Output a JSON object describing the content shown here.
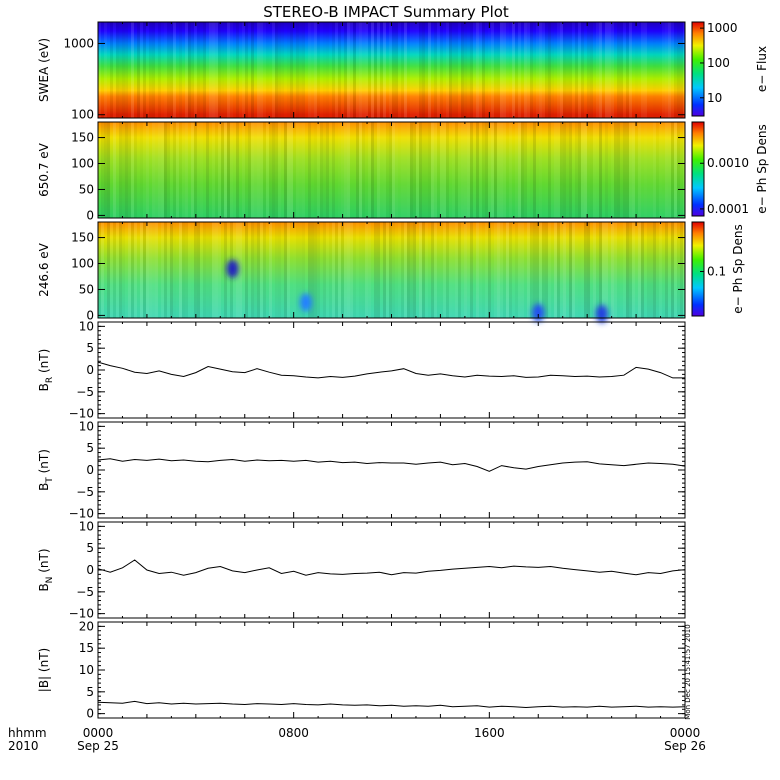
{
  "title": "STEREO-B IMPACT Summary Plot",
  "timestamp": "Mon Dec 20 15:41:57 2010",
  "x_axis": {
    "row1_label": "hhmm",
    "row2_label": "2010",
    "ticks": [
      {
        "t": 0,
        "time": "0000",
        "date": "Sep 25"
      },
      {
        "t": 8,
        "time": "0800",
        "date": ""
      },
      {
        "t": 16,
        "time": "1600",
        "date": ""
      },
      {
        "t": 24,
        "time": "0000",
        "date": "Sep 26"
      }
    ],
    "range_hours": [
      0,
      24
    ]
  },
  "chart_data": [
    {
      "type": "heatmap",
      "name": "swea",
      "ylabel": "SWEA (eV)",
      "yscale": "log",
      "ylim": [
        90,
        2000
      ],
      "yticks": [
        {
          "v": 1000,
          "label": "1000"
        },
        {
          "v": 100,
          "label": "100"
        }
      ],
      "colorbar": {
        "label": "e− Flux",
        "scale": "log",
        "range": [
          3,
          1500
        ],
        "ticks": [
          {
            "v": 1000,
            "label": "1000"
          },
          {
            "v": 100,
            "label": "100"
          },
          {
            "v": 10,
            "label": "10"
          }
        ]
      },
      "color_by_energy": [
        {
          "energy": 100,
          "color": "#e02000"
        },
        {
          "energy": 180,
          "color": "#ff8000"
        },
        {
          "energy": 220,
          "color": "#ffd000"
        },
        {
          "energy": 320,
          "color": "#b0f000"
        },
        {
          "energy": 480,
          "color": "#40e040"
        },
        {
          "energy": 700,
          "color": "#00d8c0"
        },
        {
          "energy": 1000,
          "color": "#0080ff"
        },
        {
          "energy": 1500,
          "color": "#2000ff"
        },
        {
          "energy": 2000,
          "color": "#2000c0"
        }
      ]
    },
    {
      "type": "heatmap",
      "name": "pad650",
      "ylabel": "650.7 eV",
      "ylim": [
        -5,
        180
      ],
      "yticks": [
        {
          "v": 0,
          "label": "0"
        },
        {
          "v": 50,
          "label": "50"
        },
        {
          "v": 100,
          "label": "100"
        },
        {
          "v": 150,
          "label": "150"
        }
      ],
      "colorbar": {
        "label": "e− Ph Sp Dens",
        "scale": "log",
        "range": [
          7e-05,
          0.008
        ],
        "ticks": [
          {
            "v": 0.001,
            "label": "0.0010"
          },
          {
            "v": 0.0001,
            "label": "0.0001"
          }
        ]
      },
      "color_by_angle": [
        {
          "angle": 0,
          "color": "#30d060"
        },
        {
          "angle": 60,
          "color": "#60d830"
        },
        {
          "angle": 110,
          "color": "#a0e020"
        },
        {
          "angle": 150,
          "color": "#f0e000"
        },
        {
          "angle": 180,
          "color": "#ff9000"
        }
      ]
    },
    {
      "type": "heatmap",
      "name": "pad246",
      "ylabel": "246.6 eV",
      "ylim": [
        -5,
        180
      ],
      "yticks": [
        {
          "v": 0,
          "label": "0"
        },
        {
          "v": 50,
          "label": "50"
        },
        {
          "v": 100,
          "label": "100"
        },
        {
          "v": 150,
          "label": "150"
        }
      ],
      "colorbar": {
        "label": "e− Ph Sp Dens",
        "scale": "log",
        "range": [
          0.02,
          0.6
        ],
        "ticks": [
          {
            "v": 0.1,
            "label": "0.1"
          }
        ]
      },
      "color_by_angle": [
        {
          "angle": 0,
          "color": "#40d8b0"
        },
        {
          "angle": 60,
          "color": "#50e080"
        },
        {
          "angle": 110,
          "color": "#90e030"
        },
        {
          "angle": 150,
          "color": "#e8e000"
        },
        {
          "angle": 180,
          "color": "#ff9000"
        }
      ],
      "features": [
        {
          "t": 5.5,
          "angle": 90,
          "color": "#2020c0"
        },
        {
          "t": 8.5,
          "angle": 25,
          "color": "#2080ff"
        },
        {
          "t": 18.0,
          "angle": 5,
          "color": "#2050f0"
        },
        {
          "t": 20.6,
          "angle": 3,
          "color": "#2040e0"
        }
      ]
    },
    {
      "type": "line",
      "name": "br",
      "ylabel": "B",
      "ylabel_sub": "R",
      "ylabel_unit": "(nT)",
      "ylim": [
        -11,
        11
      ],
      "yticks": [
        {
          "v": -10,
          "label": "−10"
        },
        {
          "v": -5,
          "label": "−5"
        },
        {
          "v": 0,
          "label": "0"
        },
        {
          "v": 5,
          "label": "5"
        },
        {
          "v": 10,
          "label": "10"
        }
      ],
      "x": [
        0,
        0.5,
        1,
        1.5,
        2,
        2.5,
        3,
        3.5,
        4,
        4.5,
        5,
        5.5,
        6,
        6.5,
        7,
        7.5,
        8,
        8.5,
        9,
        9.5,
        10,
        10.5,
        11,
        11.5,
        12,
        12.5,
        13,
        13.5,
        14,
        14.5,
        15,
        15.5,
        16,
        16.5,
        17,
        17.5,
        18,
        18.5,
        19,
        19.5,
        20,
        20.5,
        21,
        21.5,
        22,
        22.5,
        23,
        23.5,
        24
      ],
      "y": [
        1.8,
        1.0,
        0.4,
        -0.5,
        -0.8,
        -0.2,
        -1.0,
        -1.5,
        -0.6,
        0.8,
        0.2,
        -0.4,
        -0.6,
        0.3,
        -0.5,
        -1.2,
        -1.3,
        -1.6,
        -1.8,
        -1.5,
        -1.7,
        -1.4,
        -0.9,
        -0.5,
        -0.2,
        0.3,
        -0.8,
        -1.2,
        -0.9,
        -1.3,
        -1.6,
        -1.2,
        -1.4,
        -1.5,
        -1.3,
        -1.7,
        -1.6,
        -1.2,
        -1.3,
        -1.5,
        -1.4,
        -1.6,
        -1.5,
        -1.2,
        0.6,
        0.2,
        -0.6,
        -1.8,
        -1.8
      ]
    },
    {
      "type": "line",
      "name": "bt",
      "ylabel": "B",
      "ylabel_sub": "T",
      "ylabel_unit": "(nT)",
      "ylim": [
        -11,
        11
      ],
      "yticks": [
        {
          "v": -10,
          "label": "−10"
        },
        {
          "v": -5,
          "label": "−5"
        },
        {
          "v": 0,
          "label": "0"
        },
        {
          "v": 5,
          "label": "5"
        },
        {
          "v": 10,
          "label": "10"
        }
      ],
      "x": [
        0,
        0.5,
        1,
        1.5,
        2,
        2.5,
        3,
        3.5,
        4,
        4.5,
        5,
        5.5,
        6,
        6.5,
        7,
        7.5,
        8,
        8.5,
        9,
        9.5,
        10,
        10.5,
        11,
        11.5,
        12,
        12.5,
        13,
        13.5,
        14,
        14.5,
        15,
        15.5,
        16,
        16.5,
        17,
        17.5,
        18,
        18.5,
        19,
        19.5,
        20,
        20.5,
        21,
        21.5,
        22,
        22.5,
        23,
        23.5,
        24
      ],
      "y": [
        2.3,
        2.6,
        2.0,
        2.4,
        2.2,
        2.5,
        2.1,
        2.3,
        2.0,
        1.9,
        2.2,
        2.4,
        2.0,
        2.3,
        2.1,
        2.2,
        2.0,
        2.2,
        1.8,
        2.0,
        1.7,
        1.8,
        1.5,
        1.7,
        1.6,
        1.6,
        1.3,
        1.6,
        1.8,
        1.2,
        1.5,
        0.8,
        -0.3,
        1.0,
        0.5,
        0.2,
        0.8,
        1.2,
        1.6,
        1.8,
        1.9,
        1.4,
        1.2,
        1.0,
        1.3,
        1.6,
        1.5,
        1.3,
        0.9
      ]
    },
    {
      "type": "line",
      "name": "bn",
      "ylabel": "B",
      "ylabel_sub": "N",
      "ylabel_unit": "(nT)",
      "ylim": [
        -11,
        11
      ],
      "yticks": [
        {
          "v": -10,
          "label": "−10"
        },
        {
          "v": -5,
          "label": "−5"
        },
        {
          "v": 0,
          "label": "0"
        },
        {
          "v": 5,
          "label": "5"
        },
        {
          "v": 10,
          "label": "10"
        }
      ],
      "x": [
        0,
        0.5,
        1,
        1.5,
        2,
        2.5,
        3,
        3.5,
        4,
        4.5,
        5,
        5.5,
        6,
        6.5,
        7,
        7.5,
        8,
        8.5,
        9,
        9.5,
        10,
        10.5,
        11,
        11.5,
        12,
        12.5,
        13,
        13.5,
        14,
        14.5,
        15,
        15.5,
        16,
        16.5,
        17,
        17.5,
        18,
        18.5,
        19,
        19.5,
        20,
        20.5,
        21,
        21.5,
        22,
        22.5,
        23,
        23.5,
        24
      ],
      "y": [
        0.3,
        -0.5,
        0.5,
        2.3,
        0.0,
        -0.8,
        -0.5,
        -1.2,
        -0.6,
        0.4,
        0.8,
        -0.2,
        -0.6,
        0.0,
        0.5,
        -0.8,
        -0.3,
        -1.2,
        -0.6,
        -0.9,
        -1.0,
        -0.8,
        -0.7,
        -0.5,
        -1.1,
        -0.6,
        -0.7,
        -0.3,
        -0.1,
        0.2,
        0.4,
        0.6,
        0.8,
        0.5,
        0.9,
        0.7,
        0.6,
        0.8,
        0.4,
        0.1,
        -0.2,
        -0.5,
        -0.3,
        -0.7,
        -1.1,
        -0.6,
        -0.8,
        -0.2,
        0.1
      ]
    },
    {
      "type": "line",
      "name": "babs",
      "ylabel": "|B| (nT)",
      "ylim": [
        -1,
        21
      ],
      "yticks": [
        {
          "v": 0,
          "label": "0"
        },
        {
          "v": 5,
          "label": "5"
        },
        {
          "v": 10,
          "label": "10"
        },
        {
          "v": 15,
          "label": "15"
        },
        {
          "v": 20,
          "label": "20"
        }
      ],
      "x": [
        0,
        0.5,
        1,
        1.5,
        2,
        2.5,
        3,
        3.5,
        4,
        4.5,
        5,
        5.5,
        6,
        6.5,
        7,
        7.5,
        8,
        8.5,
        9,
        9.5,
        10,
        10.5,
        11,
        11.5,
        12,
        12.5,
        13,
        13.5,
        14,
        14.5,
        15,
        15.5,
        16,
        16.5,
        17,
        17.5,
        18,
        18.5,
        19,
        19.5,
        20,
        20.5,
        21,
        21.5,
        22,
        22.5,
        23,
        23.5,
        24
      ],
      "y": [
        2.6,
        2.5,
        2.4,
        2.8,
        2.3,
        2.5,
        2.2,
        2.4,
        2.2,
        2.3,
        2.4,
        2.2,
        2.1,
        2.3,
        2.2,
        2.1,
        2.3,
        2.1,
        2.0,
        2.2,
        2.0,
        1.9,
        2.0,
        1.8,
        1.9,
        1.7,
        1.8,
        1.7,
        1.9,
        1.6,
        1.7,
        1.8,
        1.5,
        1.7,
        1.6,
        1.4,
        1.6,
        1.7,
        1.5,
        1.6,
        1.5,
        1.7,
        1.5,
        1.6,
        1.7,
        1.5,
        1.6,
        1.5,
        1.6
      ]
    }
  ]
}
